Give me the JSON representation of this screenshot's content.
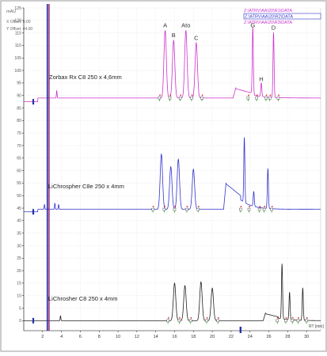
{
  "chart_data": {
    "type": "line",
    "header": {
      "units": "mAU",
      "xoffset": "X Offset: 0.00",
      "yoffset": "Y Offset: 44.00"
    },
    "legend": [
      "Z:\\ATRV\\AA\\20\\R1\\DATA",
      "Z:\\ATRV\\AA\\20\\R2\\DATA",
      "Z:\\ATRV\\AA\\20\\R3\\DATA"
    ],
    "legend_colors": [
      "#cc33cc",
      "#3333cc",
      "#222222"
    ],
    "xlabel": "RT [min]",
    "xlim": [
      0,
      31.5
    ],
    "xticks": [
      "2",
      "4",
      "6",
      "8",
      "10",
      "12",
      "14",
      "16",
      "18",
      "20",
      "22",
      "24",
      "26",
      "28",
      "30"
    ],
    "xtick_values": [
      2,
      4,
      6,
      8,
      10,
      12,
      14,
      16,
      18,
      20,
      22,
      24,
      26,
      28,
      30
    ],
    "ylim": [
      -4,
      125
    ],
    "yticks": [
      "0",
      "5",
      "10",
      "15",
      "20",
      "25",
      "30",
      "35",
      "40",
      "45",
      "50",
      "55",
      "60",
      "65",
      "70",
      "75",
      "80",
      "85",
      "90",
      "95",
      "100",
      "105",
      "110",
      "115",
      "120",
      "125"
    ],
    "ytick_values": [
      0,
      5,
      10,
      15,
      20,
      25,
      30,
      35,
      40,
      45,
      50,
      55,
      60,
      65,
      70,
      75,
      80,
      85,
      90,
      95,
      100,
      105,
      110,
      115,
      120,
      125
    ],
    "series": [
      {
        "name": "Zorbax Rx C8 250 x 4,6mm",
        "color": "#cc33cc",
        "baseline": 89,
        "baseline_start": 87.5,
        "marker_x": 0.2,
        "spikes": [
          {
            "x": 3.5,
            "h": 3
          }
        ],
        "peaks": [
          {
            "x": 15.0,
            "h": 27,
            "w": 0.18,
            "label": "A"
          },
          {
            "x": 15.9,
            "h": 23,
            "w": 0.18,
            "label": "B"
          },
          {
            "x": 17.2,
            "h": 27,
            "w": 0.18,
            "label": "Ato"
          },
          {
            "x": 18.3,
            "h": 22,
            "w": 0.18,
            "label": "C"
          },
          {
            "x": 24.3,
            "h": 27,
            "w": 0.08,
            "label": "G"
          },
          {
            "x": 25.2,
            "h": 5.5,
            "w": 0.08,
            "label": "H"
          },
          {
            "x": 26.5,
            "h": 26,
            "w": 0.08,
            "label": "D"
          }
        ],
        "bump": {
          "x0": 22.2,
          "x1": 24.2,
          "h": 4
        },
        "integration_marks": [
          14.4,
          15.5,
          16.6,
          17.8,
          18.9,
          23.8,
          24.7,
          25.7,
          26.1,
          27.0
        ]
      },
      {
        "name": "LiChrospher C8e 250 x 4mm",
        "color": "#3333cc",
        "baseline": 44.5,
        "baseline_start": 43.5,
        "marker_x": 0.2,
        "spikes": [
          {
            "x": 2.2,
            "h": 2
          },
          {
            "x": 3.3,
            "h": 2.5
          },
          {
            "x": 3.7,
            "h": 2
          }
        ],
        "peaks": [
          {
            "x": 14.6,
            "h": 22,
            "w": 0.18
          },
          {
            "x": 15.6,
            "h": 17,
            "w": 0.18
          },
          {
            "x": 16.4,
            "h": 20,
            "w": 0.18
          },
          {
            "x": 18.0,
            "h": 16,
            "w": 0.18
          },
          {
            "x": 23.4,
            "h": 26,
            "w": 0.08
          },
          {
            "x": 24.4,
            "h": 6,
            "w": 0.08
          },
          {
            "x": 25.9,
            "h": 16,
            "w": 0.08
          }
        ],
        "bump": {
          "x0": 21.2,
          "x1": 23.0,
          "h": 11
        },
        "integration_marks": [
          13.7,
          14.9,
          16.0,
          17.3,
          18.5,
          23.0,
          23.9,
          25.0,
          25.5,
          26.3
        ]
      },
      {
        "name": "LiChrosher C8 250 x 4mm",
        "color": "#222222",
        "baseline": 0,
        "baseline_start": 0,
        "marker_x": 0.2,
        "spikes": [
          {
            "x": 3.9,
            "h": 2
          }
        ],
        "peaks": [
          {
            "x": 16.0,
            "h": 15,
            "w": 0.18
          },
          {
            "x": 17.1,
            "h": 14,
            "w": 0.18
          },
          {
            "x": 18.8,
            "h": 15.5,
            "w": 0.18
          },
          {
            "x": 20.0,
            "h": 13,
            "w": 0.18
          },
          {
            "x": 27.4,
            "h": 22,
            "w": 0.08
          },
          {
            "x": 28.2,
            "h": 11,
            "w": 0.08
          },
          {
            "x": 29.6,
            "h": 13,
            "w": 0.08
          }
        ],
        "bump": {
          "x0": 25.4,
          "x1": 27.0,
          "h": 3
        },
        "integration_marks": [
          15.3,
          16.5,
          17.7,
          19.4,
          20.6,
          26.9,
          27.8,
          28.5,
          29.1,
          30.0
        ]
      }
    ],
    "solvent_peak": {
      "x": 2.6,
      "h": 150
    },
    "peak_labels_note": "Labels A, B, Ato, C, G, H, D printed above the top series peaks"
  }
}
